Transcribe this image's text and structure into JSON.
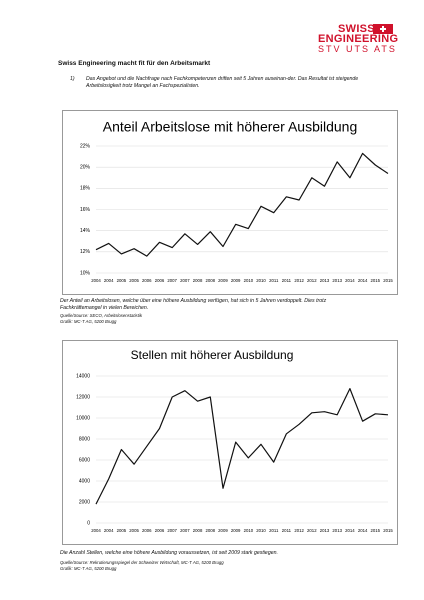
{
  "logo": {
    "line1": "SWISS",
    "line2": "ENGINEERING",
    "line3": "STV UTS ATS"
  },
  "heading": "Swiss Engineering macht fit für den Arbeitsmarkt",
  "point": {
    "number": "1)",
    "text": "Das Angebot und die Nachfrage nach Fachkompetenzen driften seit 5 Jahren auseinan-der. Das Resultat ist steigende Arbeitslosigkeit trotz Mangel an Fachspezialisten."
  },
  "chart_data": [
    {
      "type": "line",
      "title": "Anteil Arbeitslose mit höherer Ausbildung",
      "categories": [
        "2004",
        "2004",
        "2005",
        "2005",
        "2006",
        "2006",
        "2007",
        "2007",
        "2008",
        "2008",
        "2009",
        "2009",
        "2010",
        "2010",
        "2011",
        "2011",
        "2012",
        "2012",
        "2013",
        "2013",
        "2014",
        "2014",
        "2015",
        "2015"
      ],
      "values": [
        12.2,
        12.8,
        11.8,
        12.3,
        11.6,
        12.9,
        12.4,
        13.7,
        12.7,
        13.9,
        12.5,
        14.6,
        14.2,
        16.3,
        15.7,
        17.2,
        16.9,
        19.0,
        18.2,
        20.5,
        19.0,
        21.3,
        20.2,
        19.4
      ],
      "color": "#111111",
      "ylim": [
        10,
        22
      ],
      "yticks": [
        {
          "value": 10,
          "label": "10%"
        },
        {
          "value": 12,
          "label": "12%"
        },
        {
          "value": 14,
          "label": "14%"
        },
        {
          "value": 16,
          "label": "16%"
        },
        {
          "value": 18,
          "label": "18%"
        },
        {
          "value": 20,
          "label": "20%"
        },
        {
          "value": 22,
          "label": "22%"
        }
      ],
      "grid": true
    },
    {
      "type": "line",
      "title": "Stellen mit höherer Ausbildung",
      "categories": [
        "2004",
        "2004",
        "2005",
        "2005",
        "2006",
        "2006",
        "2007",
        "2007",
        "2008",
        "2008",
        "2009",
        "2009",
        "2010",
        "2010",
        "2011",
        "2011",
        "2012",
        "2012",
        "2013",
        "2013",
        "2014",
        "2014",
        "2015",
        "2015"
      ],
      "values": [
        1800,
        4200,
        7000,
        5600,
        7300,
        9000,
        12000,
        12600,
        11600,
        12000,
        3300,
        7700,
        6200,
        7500,
        5800,
        8500,
        9400,
        10500,
        10600,
        10300,
        12800,
        9700,
        10400,
        10300
      ],
      "color": "#111111",
      "ylim": [
        0,
        14000
      ],
      "yticks": [
        0,
        2000,
        4000,
        6000,
        8000,
        10000,
        12000,
        14000
      ],
      "grid": true
    }
  ],
  "captions": [
    {
      "text": "Der Anteil an Arbeitslosen, welche über eine höhere Ausbildung verfügen, hat sich in 5 Jahren verdoppelt. Dies trotz Fachkräftemangel in vielen Bereichen.",
      "source": "Quelle/Source: SECO, Arbeitslosenstatistik",
      "graphic": "Grafik: MC-T AG, 5200 Brugg"
    },
    {
      "text": "Die Anzahl Stellen, welche eine höhere Ausbildung voraussetzen, ist seit 2009 stark gestiegen.",
      "source": "Quelle/Source: Rekrutierungsspiegel der Schweizer Wirtschaft, MC-T AG, 5200 Brugg",
      "graphic": "Grafik: MC-T AG, 5200 Brugg"
    }
  ]
}
